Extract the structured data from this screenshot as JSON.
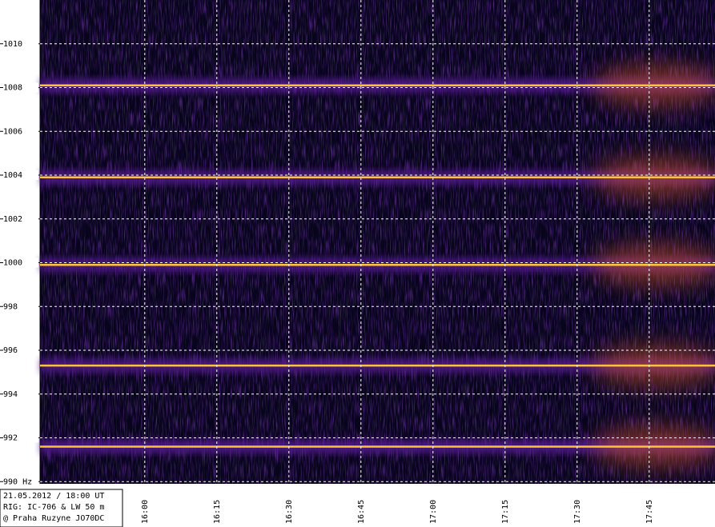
{
  "chart_data": {
    "type": "spectrogram",
    "ylim": [
      989.9,
      1012
    ],
    "yticks": [
      1010,
      1008,
      1006,
      1004,
      1002,
      1000,
      998,
      996,
      994,
      992,
      {
        "value": 990,
        "label": "990 Hz"
      }
    ],
    "xlim": [
      938.2,
      1078.7
    ],
    "xticks": [
      {
        "value": 960,
        "label": "16:00"
      },
      {
        "value": 975,
        "label": "16:15"
      },
      {
        "value": 990,
        "label": "16:30"
      },
      {
        "value": 1005,
        "label": "16:45"
      },
      {
        "value": 1020,
        "label": "17:00"
      },
      {
        "value": 1035,
        "label": "17:15"
      },
      {
        "value": 1050,
        "label": "17:30"
      },
      {
        "value": 1065,
        "label": "17:45"
      }
    ],
    "grid": true,
    "carriers": [
      1008.1,
      1003.9,
      999.9,
      995.3,
      991.6
    ],
    "color": "#ffc23a",
    "info": [
      "21.05.2012 / 18:00 UT",
      "RIG: IC-706 & LW 50 m",
      "@ Praha Ruzyne JO70DC"
    ]
  }
}
